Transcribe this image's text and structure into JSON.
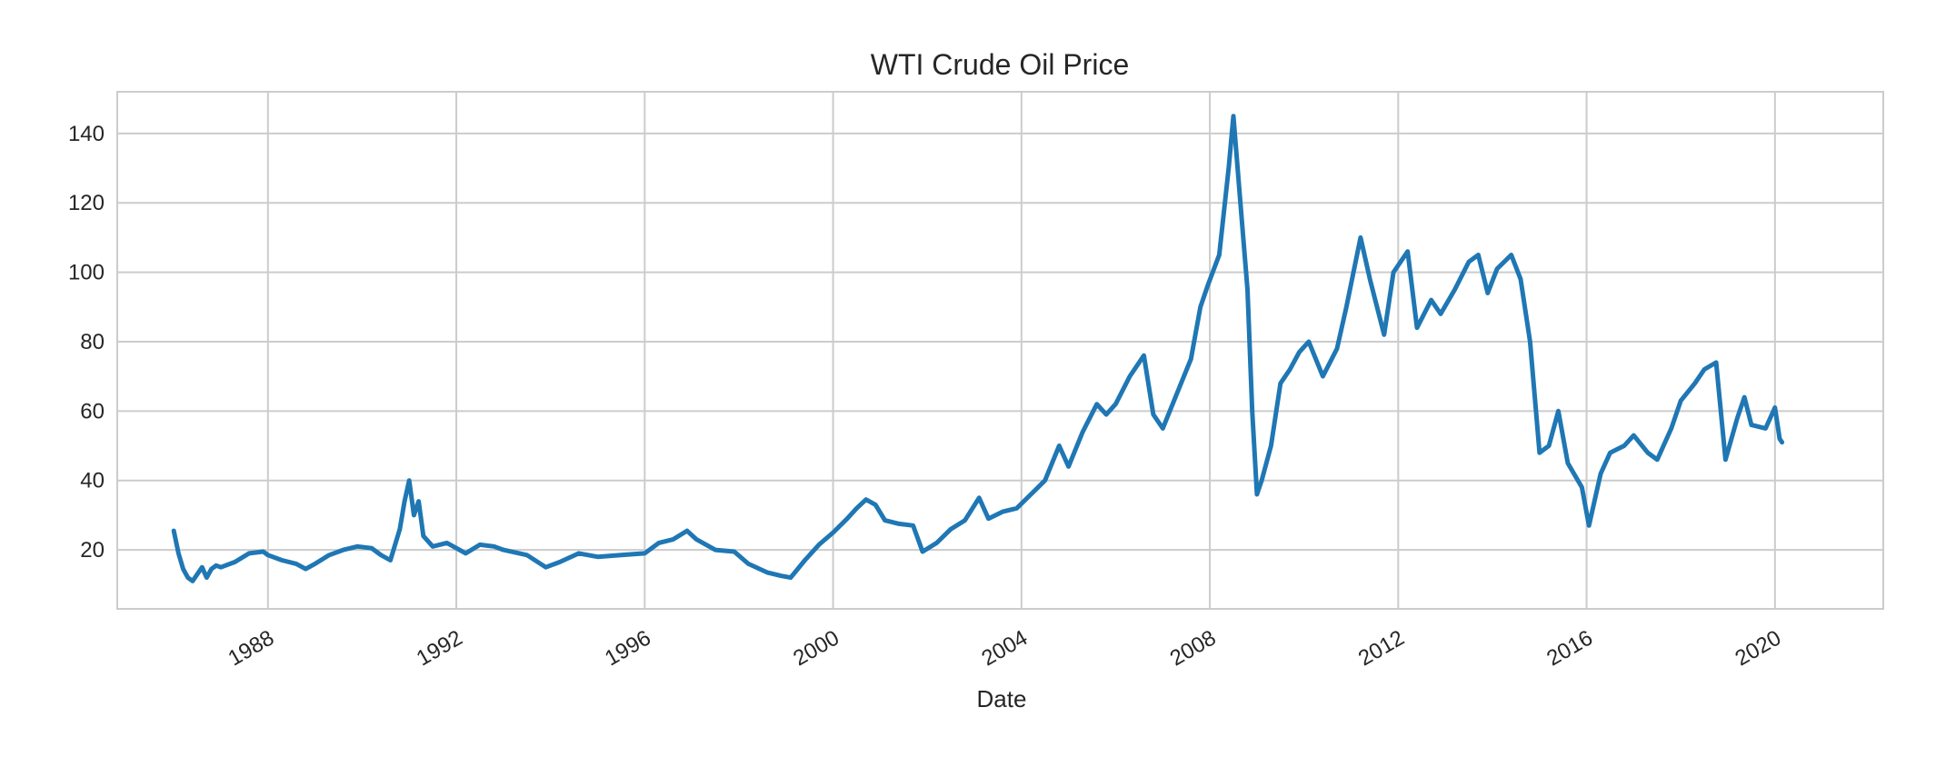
{
  "chart_data": {
    "type": "line",
    "title": "WTI Crude Oil Price",
    "xlabel": "Date",
    "ylabel": "",
    "x_ticks": [
      "1988",
      "1992",
      "1996",
      "2000",
      "2004",
      "2008",
      "2012",
      "2016",
      "2020"
    ],
    "y_ticks": [
      20,
      40,
      60,
      80,
      100,
      120,
      140
    ],
    "xlim": [
      1984.8,
      2022.3
    ],
    "ylim": [
      3,
      152
    ],
    "grid": true,
    "legend": "none",
    "colors": {
      "line": "#1f77b4",
      "grid": "#cccccc",
      "frame": "#cccccc",
      "background": "#ffffff"
    },
    "series": [
      {
        "name": "",
        "points": [
          [
            1986.0,
            25.5
          ],
          [
            1986.1,
            19.0
          ],
          [
            1986.2,
            14.5
          ],
          [
            1986.3,
            12.0
          ],
          [
            1986.4,
            11.0
          ],
          [
            1986.5,
            13.0
          ],
          [
            1986.6,
            15.0
          ],
          [
            1986.7,
            12.0
          ],
          [
            1986.8,
            14.5
          ],
          [
            1986.9,
            15.5
          ],
          [
            1987.0,
            15.0
          ],
          [
            1987.3,
            16.5
          ],
          [
            1987.6,
            19.0
          ],
          [
            1987.9,
            19.5
          ],
          [
            1988.0,
            18.5
          ],
          [
            1988.3,
            17.0
          ],
          [
            1988.6,
            16.0
          ],
          [
            1988.8,
            14.5
          ],
          [
            1989.0,
            16.0
          ],
          [
            1989.3,
            18.5
          ],
          [
            1989.6,
            20.0
          ],
          [
            1989.9,
            21.0
          ],
          [
            1990.2,
            20.5
          ],
          [
            1990.4,
            18.5
          ],
          [
            1990.6,
            17.0
          ],
          [
            1990.8,
            26.0
          ],
          [
            1990.9,
            34.0
          ],
          [
            1991.0,
            40.0
          ],
          [
            1991.1,
            30.0
          ],
          [
            1991.2,
            34.0
          ],
          [
            1991.3,
            24.0
          ],
          [
            1991.5,
            21.0
          ],
          [
            1991.8,
            22.0
          ],
          [
            1992.0,
            20.5
          ],
          [
            1992.2,
            19.0
          ],
          [
            1992.5,
            21.5
          ],
          [
            1992.8,
            21.0
          ],
          [
            1993.0,
            20.0
          ],
          [
            1993.5,
            18.5
          ],
          [
            1993.9,
            15.0
          ],
          [
            1994.2,
            16.5
          ],
          [
            1994.6,
            19.0
          ],
          [
            1995.0,
            18.0
          ],
          [
            1995.5,
            18.5
          ],
          [
            1996.0,
            19.0
          ],
          [
            1996.3,
            22.0
          ],
          [
            1996.6,
            23.0
          ],
          [
            1996.9,
            25.5
          ],
          [
            1997.1,
            23.0
          ],
          [
            1997.5,
            20.0
          ],
          [
            1997.9,
            19.5
          ],
          [
            1998.2,
            16.0
          ],
          [
            1998.6,
            13.5
          ],
          [
            1998.9,
            12.5
          ],
          [
            1999.1,
            12.0
          ],
          [
            1999.4,
            17.0
          ],
          [
            1999.7,
            21.5
          ],
          [
            2000.0,
            25.0
          ],
          [
            2000.3,
            29.0
          ],
          [
            2000.5,
            32.0
          ],
          [
            2000.7,
            34.5
          ],
          [
            2000.9,
            33.0
          ],
          [
            2001.1,
            28.5
          ],
          [
            2001.4,
            27.5
          ],
          [
            2001.7,
            27.0
          ],
          [
            2001.9,
            19.5
          ],
          [
            2002.2,
            22.0
          ],
          [
            2002.5,
            26.0
          ],
          [
            2002.8,
            28.5
          ],
          [
            2003.1,
            35.0
          ],
          [
            2003.3,
            29.0
          ],
          [
            2003.6,
            31.0
          ],
          [
            2003.9,
            32.0
          ],
          [
            2004.2,
            36.0
          ],
          [
            2004.5,
            40.0
          ],
          [
            2004.8,
            50.0
          ],
          [
            2005.0,
            44.0
          ],
          [
            2005.3,
            54.0
          ],
          [
            2005.6,
            62.0
          ],
          [
            2005.8,
            59.0
          ],
          [
            2006.0,
            62.0
          ],
          [
            2006.3,
            70.0
          ],
          [
            2006.6,
            76.0
          ],
          [
            2006.8,
            59.0
          ],
          [
            2007.0,
            55.0
          ],
          [
            2007.3,
            65.0
          ],
          [
            2007.6,
            75.0
          ],
          [
            2007.8,
            90.0
          ],
          [
            2007.95,
            96.0
          ],
          [
            2008.2,
            105.0
          ],
          [
            2008.4,
            130.0
          ],
          [
            2008.5,
            145.0
          ],
          [
            2008.65,
            120.0
          ],
          [
            2008.8,
            95.0
          ],
          [
            2008.9,
            60.0
          ],
          [
            2009.0,
            36.0
          ],
          [
            2009.1,
            40.0
          ],
          [
            2009.3,
            50.0
          ],
          [
            2009.5,
            68.0
          ],
          [
            2009.7,
            72.0
          ],
          [
            2009.9,
            77.0
          ],
          [
            2010.1,
            80.0
          ],
          [
            2010.4,
            70.0
          ],
          [
            2010.7,
            78.0
          ],
          [
            2010.9,
            90.0
          ],
          [
            2011.2,
            110.0
          ],
          [
            2011.4,
            98.0
          ],
          [
            2011.7,
            82.0
          ],
          [
            2011.9,
            100.0
          ],
          [
            2012.2,
            106.0
          ],
          [
            2012.4,
            84.0
          ],
          [
            2012.7,
            92.0
          ],
          [
            2012.9,
            88.0
          ],
          [
            2013.2,
            95.0
          ],
          [
            2013.5,
            103.0
          ],
          [
            2013.7,
            105.0
          ],
          [
            2013.9,
            94.0
          ],
          [
            2014.1,
            101.0
          ],
          [
            2014.4,
            105.0
          ],
          [
            2014.6,
            98.0
          ],
          [
            2014.8,
            80.0
          ],
          [
            2015.0,
            48.0
          ],
          [
            2015.2,
            50.0
          ],
          [
            2015.4,
            60.0
          ],
          [
            2015.6,
            45.0
          ],
          [
            2015.9,
            38.0
          ],
          [
            2016.05,
            27.0
          ],
          [
            2016.3,
            42.0
          ],
          [
            2016.5,
            48.0
          ],
          [
            2016.8,
            50.0
          ],
          [
            2017.0,
            53.0
          ],
          [
            2017.3,
            48.0
          ],
          [
            2017.5,
            46.0
          ],
          [
            2017.8,
            55.0
          ],
          [
            2018.0,
            63.0
          ],
          [
            2018.3,
            68.0
          ],
          [
            2018.5,
            72.0
          ],
          [
            2018.75,
            74.0
          ],
          [
            2018.95,
            46.0
          ],
          [
            2019.2,
            58.0
          ],
          [
            2019.35,
            64.0
          ],
          [
            2019.5,
            56.0
          ],
          [
            2019.8,
            55.0
          ],
          [
            2020.0,
            61.0
          ],
          [
            2020.1,
            52.0
          ],
          [
            2020.15,
            51.0
          ]
        ]
      }
    ]
  }
}
